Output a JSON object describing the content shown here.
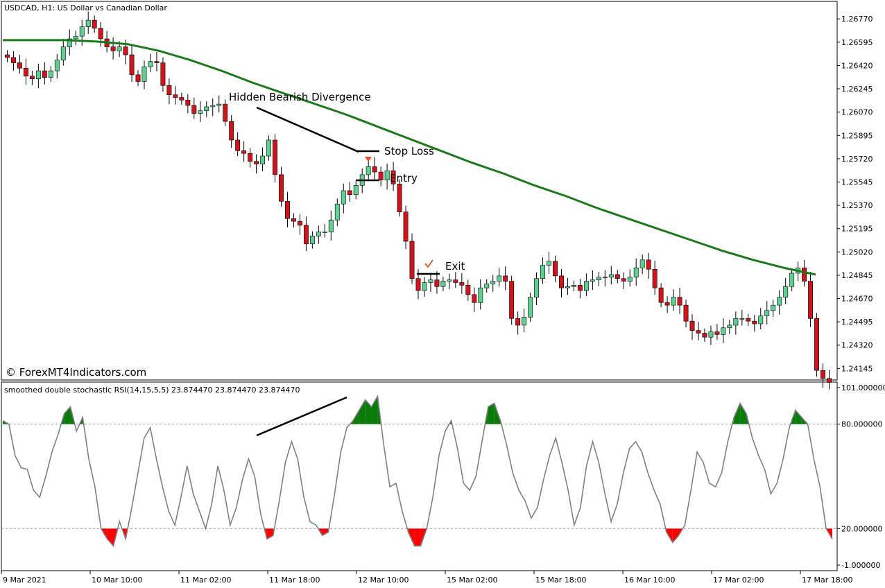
{
  "chart_data": [
    {
      "type": "candlestick",
      "title": "USDCAD, H1:  US Dollar vs Canadian Dollar",
      "watermark": "© ForexMT4Indicators.com",
      "ylim": [
        1.24,
        1.269
      ],
      "y_tick_labels": [
        "1.26770",
        "1.26595",
        "1.26420",
        "1.26245",
        "1.26070",
        "1.25895",
        "1.25720",
        "1.25545",
        "1.25370",
        "1.25195",
        "1.25020",
        "1.24845",
        "1.24670",
        "1.24495",
        "1.24320",
        "1.24145"
      ],
      "x_tick_labels": [
        "9 Mar 2021",
        "10 Mar 10:00",
        "11 Mar 02:00",
        "11 Mar 18:00",
        "12 Mar 10:00",
        "15 Mar 02:00",
        "15 Mar 18:00",
        "16 Mar 10:00",
        "17 Mar 02:00",
        "17 Mar 18:00"
      ],
      "bull_color": "#5ed190",
      "bear_color": "#d0141b",
      "ma_color": "#1a7a1a",
      "closes": [
        1.2648,
        1.2644,
        1.264,
        1.2634,
        1.2632,
        1.2638,
        1.2633,
        1.2638,
        1.2646,
        1.2656,
        1.2662,
        1.2664,
        1.2671,
        1.2676,
        1.267,
        1.2662,
        1.2656,
        1.2653,
        1.2656,
        1.265,
        1.2635,
        1.263,
        1.2641,
        1.2645,
        1.2644,
        1.2627,
        1.262,
        1.2618,
        1.2616,
        1.2612,
        1.2606,
        1.2608,
        1.2611,
        1.2612,
        1.2613,
        1.26,
        1.2586,
        1.2578,
        1.2576,
        1.257,
        1.2568,
        1.2574,
        1.2586,
        1.256,
        1.254,
        1.2527,
        1.2525,
        1.2522,
        1.2508,
        1.2514,
        1.2517,
        1.2517,
        1.2526,
        1.2538,
        1.2548,
        1.2545,
        1.2552,
        1.256,
        1.2566,
        1.2562,
        1.2556,
        1.2563,
        1.2553,
        1.2532,
        1.251,
        1.2482,
        1.2473,
        1.2479,
        1.2481,
        1.2476,
        1.248,
        1.2481,
        1.2479,
        1.2477,
        1.247,
        1.2464,
        1.2475,
        1.2478,
        1.248,
        1.2484,
        1.248,
        1.2452,
        1.2447,
        1.2453,
        1.2468,
        1.2482,
        1.2492,
        1.2495,
        1.2484,
        1.2475,
        1.2476,
        1.2477,
        1.2473,
        1.248,
        1.2481,
        1.2483,
        1.2483,
        1.2485,
        1.2482,
        1.248,
        1.2483,
        1.249,
        1.2496,
        1.2489,
        1.2475,
        1.2464,
        1.2462,
        1.2468,
        1.2462,
        1.245,
        1.2443,
        1.2441,
        1.2438,
        1.2442,
        1.244,
        1.2445,
        1.2447,
        1.2452,
        1.2452,
        1.245,
        1.2448,
        1.2454,
        1.2458,
        1.2462,
        1.2468,
        1.2476,
        1.2486,
        1.249,
        1.248,
        1.2452,
        1.2413,
        1.2407,
        1.2404
      ],
      "opens_start": 1.265,
      "ma_values": [
        1.2661,
        1.2661,
        1.2661,
        1.266,
        1.2658,
        1.2653,
        1.2646,
        1.2638,
        1.2629,
        1.2621,
        1.2613,
        1.2605,
        1.2596,
        1.2587,
        1.2578,
        1.2569,
        1.2561,
        1.2552,
        1.2544,
        1.2535,
        1.2527,
        1.2519,
        1.2511,
        1.2503,
        1.2496,
        1.249,
        1.2485
      ],
      "annotations": [
        {
          "text": "Hidden Bearish Divergence"
        },
        {
          "text": "Stop Loss"
        },
        {
          "text": "Entry"
        },
        {
          "text": "Exit"
        }
      ]
    },
    {
      "type": "area",
      "title": "smoothed double stochastic RSI(14,15,5,5) 23.874470 23.874470 23.874470",
      "ylim": [
        -1,
        101
      ],
      "y_tick_labels": [
        "101.000000",
        "80.000000",
        "20.000000",
        "-1.000000"
      ],
      "levels": [
        80,
        20
      ],
      "line_color": "#808080",
      "overbought_fill": "#0a7a0a",
      "oversold_fill": "#ff0000",
      "values": [
        82,
        80,
        62,
        55,
        54,
        42,
        38,
        50,
        64,
        74,
        86,
        90,
        76,
        84,
        60,
        44,
        20,
        14,
        10,
        24,
        14,
        32,
        52,
        72,
        78,
        60,
        44,
        30,
        22,
        38,
        56,
        40,
        30,
        20,
        34,
        56,
        42,
        22,
        32,
        48,
        60,
        50,
        28,
        14,
        16,
        36,
        58,
        70,
        60,
        38,
        24,
        22,
        16,
        18,
        40,
        64,
        78,
        82,
        88,
        94,
        90,
        96,
        68,
        44,
        46,
        30,
        18,
        10,
        10,
        20,
        38,
        62,
        76,
        82,
        66,
        46,
        42,
        50,
        70,
        90,
        92,
        82,
        68,
        52,
        42,
        36,
        26,
        32,
        48,
        62,
        72,
        58,
        42,
        22,
        32,
        56,
        70,
        58,
        40,
        24,
        34,
        52,
        66,
        70,
        64,
        52,
        42,
        34,
        18,
        12,
        16,
        22,
        42,
        64,
        58,
        46,
        44,
        52,
        70,
        84,
        92,
        86,
        72,
        62,
        54,
        40,
        46,
        60,
        78,
        88,
        84,
        80,
        60,
        44,
        20,
        14
      ]
    }
  ]
}
